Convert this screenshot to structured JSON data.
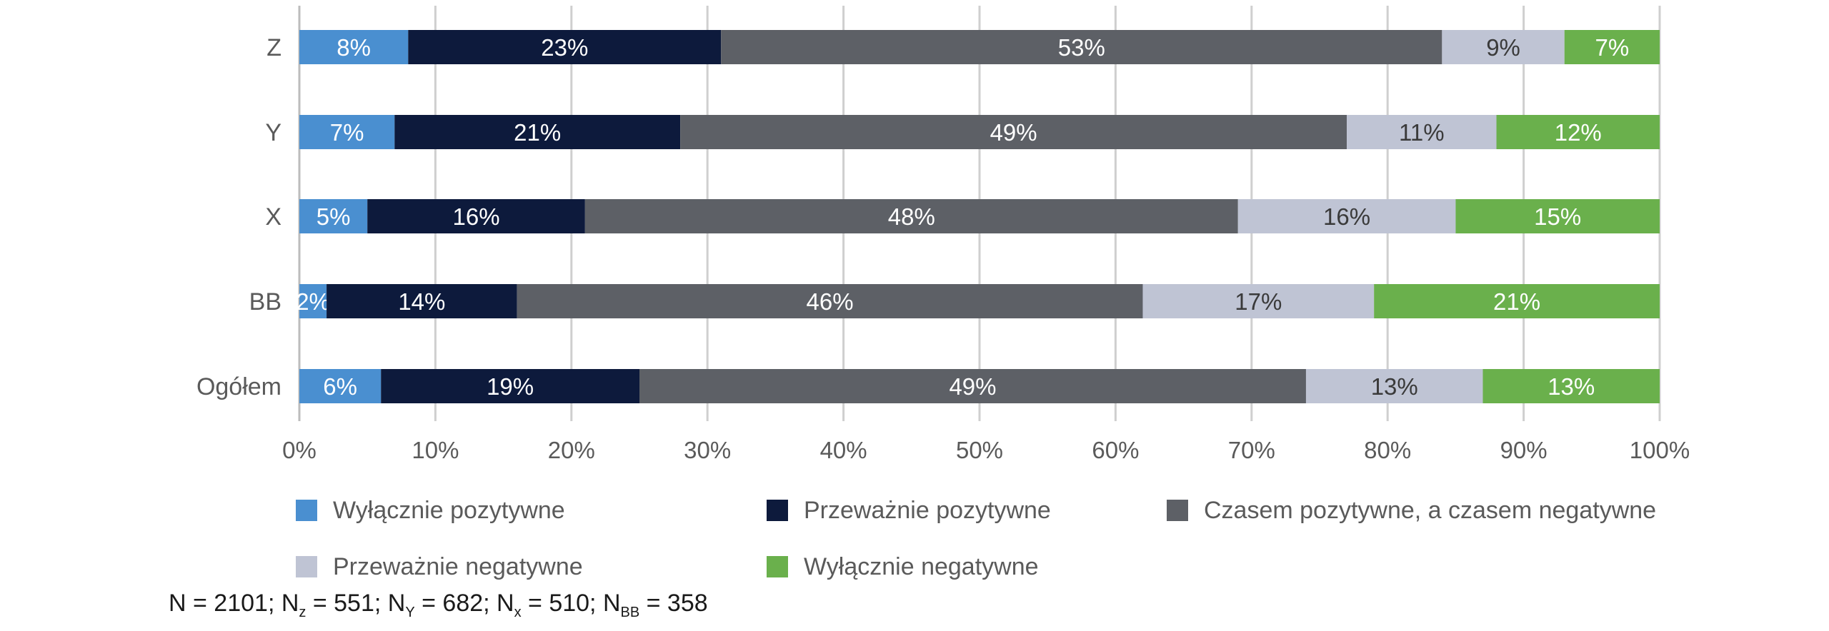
{
  "chart_data": {
    "type": "bar",
    "orientation": "horizontal",
    "stacked": true,
    "categories": [
      "Z",
      "Y",
      "X",
      "BB",
      "Ogółem"
    ],
    "series": [
      {
        "name": "Wyłącznie pozytywne",
        "color": "#4a8fd0",
        "label_color": "#ffffff",
        "values": [
          8,
          7,
          5,
          2,
          6
        ]
      },
      {
        "name": "Przeważnie pozytywne",
        "color": "#0d1a3c",
        "label_color": "#ffffff",
        "values": [
          23,
          21,
          16,
          14,
          19
        ]
      },
      {
        "name": "Czasem pozytywne, a czasem negatywne",
        "color": "#5d6066",
        "label_color": "#ffffff",
        "values": [
          53,
          49,
          48,
          46,
          49
        ]
      },
      {
        "name": "Przeważnie negatywne",
        "color": "#bfc4d4",
        "label_color": "#3a3a3a",
        "values": [
          9,
          11,
          16,
          17,
          13
        ]
      },
      {
        "name": "Wyłącznie negatywne",
        "color": "#6ab04c",
        "label_color": "#ffffff",
        "values": [
          7,
          12,
          15,
          21,
          13
        ]
      }
    ],
    "value_suffix": "%",
    "xlim": [
      0,
      100
    ],
    "xticks": [
      0,
      10,
      20,
      30,
      40,
      50,
      60,
      70,
      80,
      90,
      100
    ],
    "tick_suffix": "%",
    "grid": true,
    "legend_position": "bottom"
  },
  "footnote": {
    "parts": [
      {
        "text": "N = 2101; N",
        "sub": "z"
      },
      {
        "text": " = 551; N",
        "sub": "Y"
      },
      {
        "text": " = 682; N",
        "sub": "x"
      },
      {
        "text": " = 510; N",
        "sub": "BB"
      },
      {
        "text": " = 358",
        "sub": ""
      }
    ]
  }
}
